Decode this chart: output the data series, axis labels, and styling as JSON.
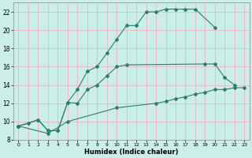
{
  "xlabel": "Humidex (Indice chaleur)",
  "bg_color": "#cceee8",
  "grid_color": "#e8b8b8",
  "line_color": "#2e7d72",
  "xlim": [
    -0.5,
    23.5
  ],
  "ylim": [
    8,
    23
  ],
  "xticks": [
    0,
    1,
    2,
    3,
    4,
    5,
    6,
    7,
    8,
    9,
    10,
    11,
    12,
    13,
    14,
    15,
    16,
    17,
    18,
    19,
    20,
    21,
    22,
    23
  ],
  "yticks": [
    8,
    10,
    12,
    14,
    16,
    18,
    20,
    22
  ],
  "line1_x": [
    0,
    1,
    2,
    3,
    4,
    5,
    6,
    7,
    8,
    9,
    10,
    11,
    12,
    13,
    14,
    15,
    16,
    17,
    18,
    20
  ],
  "line1_y": [
    9.5,
    9.8,
    10.2,
    9.0,
    9.0,
    12.1,
    13.5,
    15.5,
    16.0,
    17.5,
    19.0,
    20.5,
    20.5,
    22.0,
    22.0,
    22.3,
    22.3,
    22.3,
    22.3,
    20.3
  ],
  "line2_x": [
    0,
    2,
    3,
    4,
    5,
    6,
    7,
    8,
    9,
    10,
    11,
    19,
    20,
    21,
    22
  ],
  "line2_y": [
    9.5,
    10.2,
    9.0,
    9.0,
    12.1,
    12.0,
    13.5,
    14.0,
    15.0,
    16.0,
    16.2,
    16.3,
    16.3,
    14.8,
    14.0
  ],
  "line3_x": [
    0,
    3,
    5,
    10,
    14,
    15,
    16,
    17,
    18,
    19,
    20,
    21,
    22,
    23
  ],
  "line3_y": [
    9.5,
    8.7,
    10.0,
    11.5,
    12.0,
    12.2,
    12.5,
    12.7,
    13.0,
    13.2,
    13.5,
    13.5,
    13.7,
    13.7
  ]
}
